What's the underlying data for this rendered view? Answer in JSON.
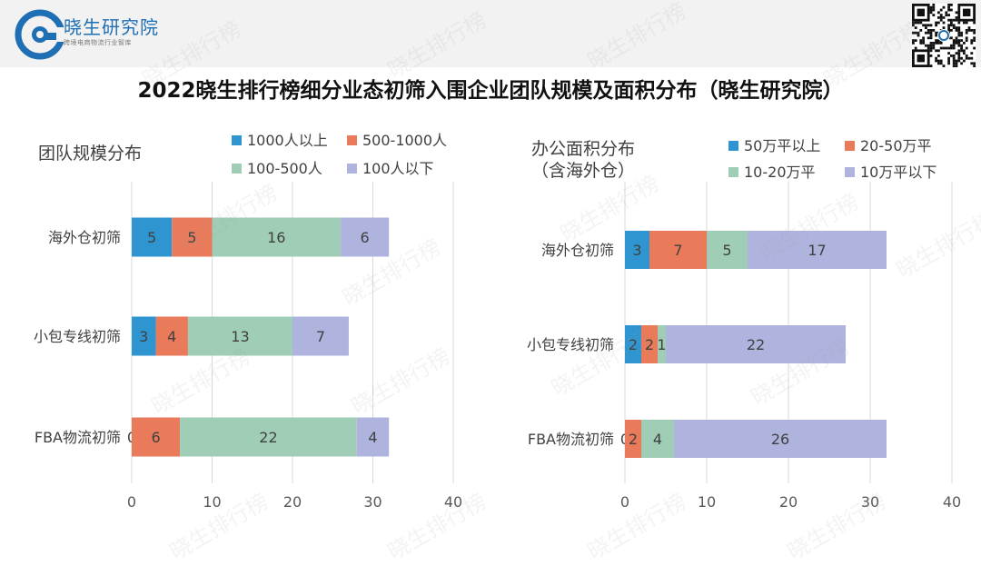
{
  "header": {
    "brand_name": "晓生研究院",
    "brand_tagline": "跨境电商物流行业智库"
  },
  "title": "2022晓生排行榜细分业态初筛入围企业团队规模及面积分布（晓生研究院）",
  "colors": {
    "blue": "#2e95d0",
    "orange": "#e97a5a",
    "green": "#9fcdb5",
    "purple": "#aeb4de",
    "brand": "#1f6fb5"
  },
  "chart_data": [
    {
      "type": "bar",
      "orientation": "horizontal",
      "stacked": true,
      "title_lines": [
        "团队规模分布"
      ],
      "categories": [
        "海外仓初筛",
        "小包专线初筛",
        "FBA物流初筛"
      ],
      "series": [
        {
          "name": "1000人以上",
          "color": "#2e95d0",
          "values": [
            5,
            3,
            0
          ]
        },
        {
          "name": "500-1000人",
          "color": "#e97a5a",
          "values": [
            5,
            4,
            6
          ]
        },
        {
          "name": "100-500人",
          "color": "#9fcdb5",
          "values": [
            16,
            13,
            22
          ]
        },
        {
          "name": "100人以下",
          "color": "#aeb4de",
          "values": [
            6,
            7,
            4
          ]
        }
      ],
      "xlim": [
        0,
        40
      ],
      "xticks": [
        "0",
        "10",
        "20",
        "30",
        "40"
      ],
      "legend": "top",
      "grid": true
    },
    {
      "type": "bar",
      "orientation": "horizontal",
      "stacked": true,
      "title_lines": [
        "办公面积分布",
        "（含海外仓）"
      ],
      "categories": [
        "海外仓初筛",
        "小包专线初筛",
        "FBA物流初筛"
      ],
      "series": [
        {
          "name": "50万平以上",
          "color": "#2e95d0",
          "values": [
            3,
            2,
            0
          ]
        },
        {
          "name": "20-50万平",
          "color": "#e97a5a",
          "values": [
            7,
            2,
            2
          ]
        },
        {
          "name": "10-20万平",
          "color": "#9fcdb5",
          "values": [
            5,
            1,
            4
          ]
        },
        {
          "name": "10万平以下",
          "color": "#aeb4de",
          "values": [
            17,
            22,
            26
          ]
        }
      ],
      "xlim": [
        0,
        40
      ],
      "xticks": [
        "0",
        "10",
        "20",
        "30",
        "40"
      ],
      "legend": "top",
      "grid": true
    }
  ]
}
